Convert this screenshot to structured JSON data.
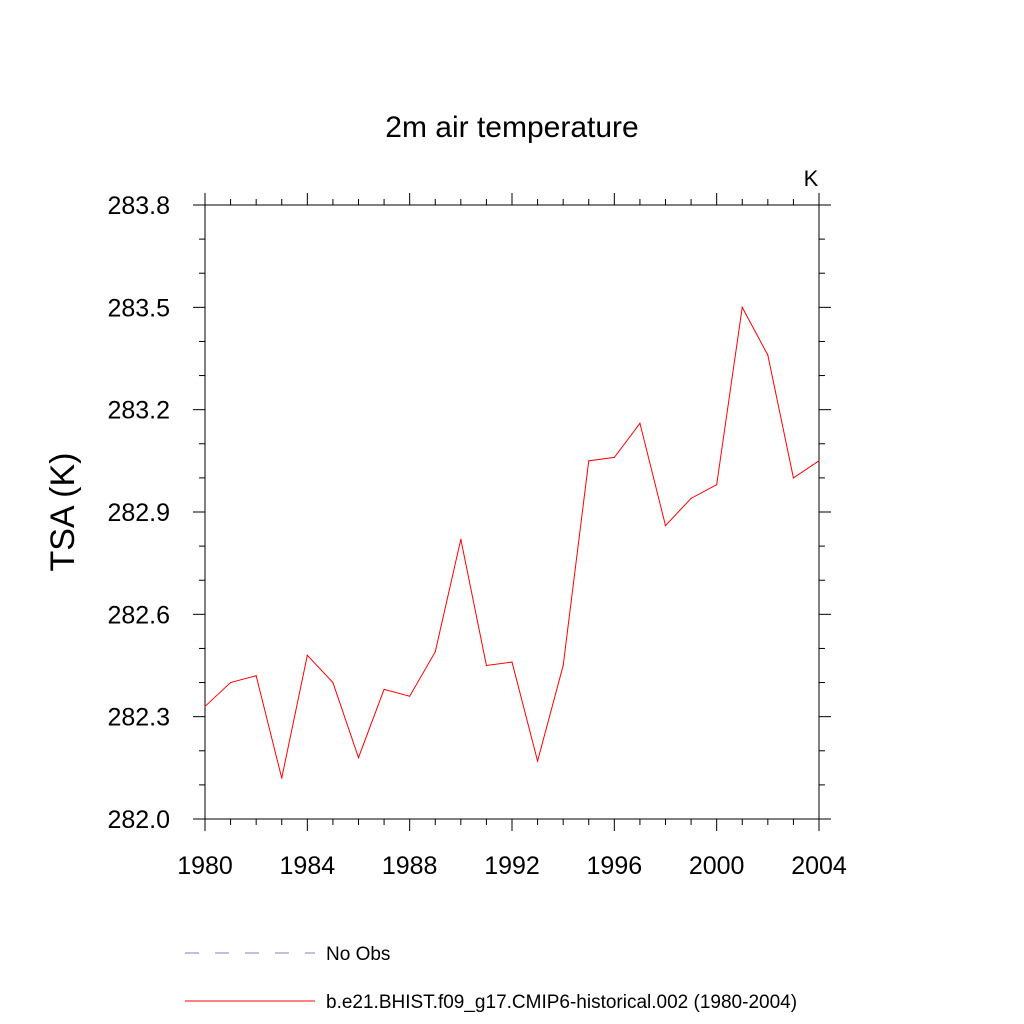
{
  "chart_data": {
    "type": "line",
    "title": "2m air temperature",
    "units_label": "K",
    "xlabel": "",
    "ylabel": "TSA  (K)",
    "xlim": [
      1980,
      2004
    ],
    "ylim": [
      282.0,
      283.8
    ],
    "x_ticks": [
      "1980",
      "1984",
      "1988",
      "1992",
      "1996",
      "2000",
      "2004"
    ],
    "x_tick_values": [
      1980,
      1984,
      1988,
      1992,
      1996,
      2000,
      2004
    ],
    "y_ticks": [
      "282.0",
      "282.3",
      "282.6",
      "282.9",
      "283.2",
      "283.5",
      "283.8"
    ],
    "y_tick_values": [
      282.0,
      282.3,
      282.6,
      282.9,
      283.2,
      283.5,
      283.8
    ],
    "series": [
      {
        "name": "b.e21.BHIST.f09_g17.CMIP6-historical.002 (1980-2004)",
        "color": "#ff0000",
        "x": [
          1980,
          1981,
          1982,
          1983,
          1984,
          1985,
          1986,
          1987,
          1988,
          1989,
          1990,
          1991,
          1992,
          1993,
          1994,
          1995,
          1996,
          1997,
          1998,
          1999,
          2000,
          2001,
          2002,
          2003,
          2004
        ],
        "values": [
          282.33,
          282.4,
          282.42,
          282.12,
          282.48,
          282.4,
          282.18,
          282.38,
          282.36,
          282.49,
          282.82,
          282.45,
          282.46,
          282.17,
          282.45,
          283.05,
          283.06,
          283.16,
          282.86,
          282.94,
          282.98,
          283.5,
          283.36,
          283.0,
          283.05
        ]
      }
    ],
    "legend": [
      {
        "label": "No Obs",
        "color": "#8080c0",
        "style": "dashed"
      },
      {
        "label": "b.e21.BHIST.f09_g17.CMIP6-historical.002 (1980-2004)",
        "color": "#ff0000",
        "style": "solid"
      }
    ]
  }
}
